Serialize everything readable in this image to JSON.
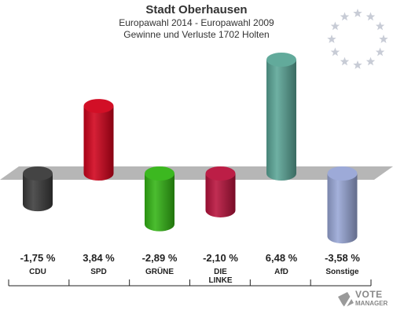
{
  "header": {
    "title": "Stadt Oberhausen",
    "subtitle1": "Europawahl 2014 - Europawahl 2009",
    "subtitle2": "Gewinne und Verluste 1702 Holten"
  },
  "chart_data": {
    "type": "bar",
    "categories": [
      "CDU",
      "SPD",
      "GRÜNE",
      "DIE LINKE",
      "AfD",
      "Sonstige"
    ],
    "values": [
      -1.75,
      3.84,
      -2.89,
      -2.1,
      6.48,
      -3.58
    ],
    "value_labels": [
      "-1,75 %",
      "3,84 %",
      "-2,89 %",
      "-2,10 %",
      "6,48 %",
      "-3,58 %"
    ],
    "colors": [
      "#3a3a3a",
      "#d0021b",
      "#32b414",
      "#b8123c",
      "#5aa596",
      "#98a6d6"
    ],
    "title": "",
    "xlabel": "",
    "ylabel": "",
    "grid": false
  },
  "branding": {
    "logo_text": "VOTE",
    "logo_subtext": "MANAGER",
    "star_color": "#c8ccd6"
  }
}
